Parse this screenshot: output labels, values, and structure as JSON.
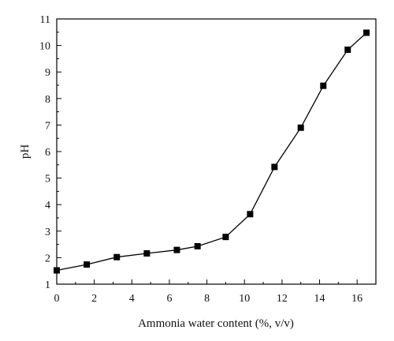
{
  "chart_data": {
    "type": "line",
    "title": "",
    "xlabel": "Ammonia water content (%, v/v)",
    "ylabel": "pH",
    "xlim": [
      0,
      17
    ],
    "ylim": [
      1,
      11
    ],
    "x_ticks": [
      0,
      2,
      4,
      6,
      8,
      10,
      12,
      14,
      16
    ],
    "y_ticks": [
      1,
      2,
      3,
      4,
      5,
      6,
      7,
      8,
      9,
      10,
      11
    ],
    "grid": false,
    "legend": "none",
    "marker": "square",
    "line_color": "#000000",
    "series": [
      {
        "x": [
          0,
          1.6,
          3.2,
          4.8,
          6.4,
          7.5,
          9.0,
          10.3,
          11.6,
          13.0,
          14.2,
          15.5,
          16.5
        ],
        "y": [
          1.52,
          1.74,
          2.02,
          2.16,
          2.29,
          2.43,
          2.78,
          3.64,
          5.42,
          6.9,
          8.48,
          9.84,
          10.48
        ]
      }
    ]
  }
}
